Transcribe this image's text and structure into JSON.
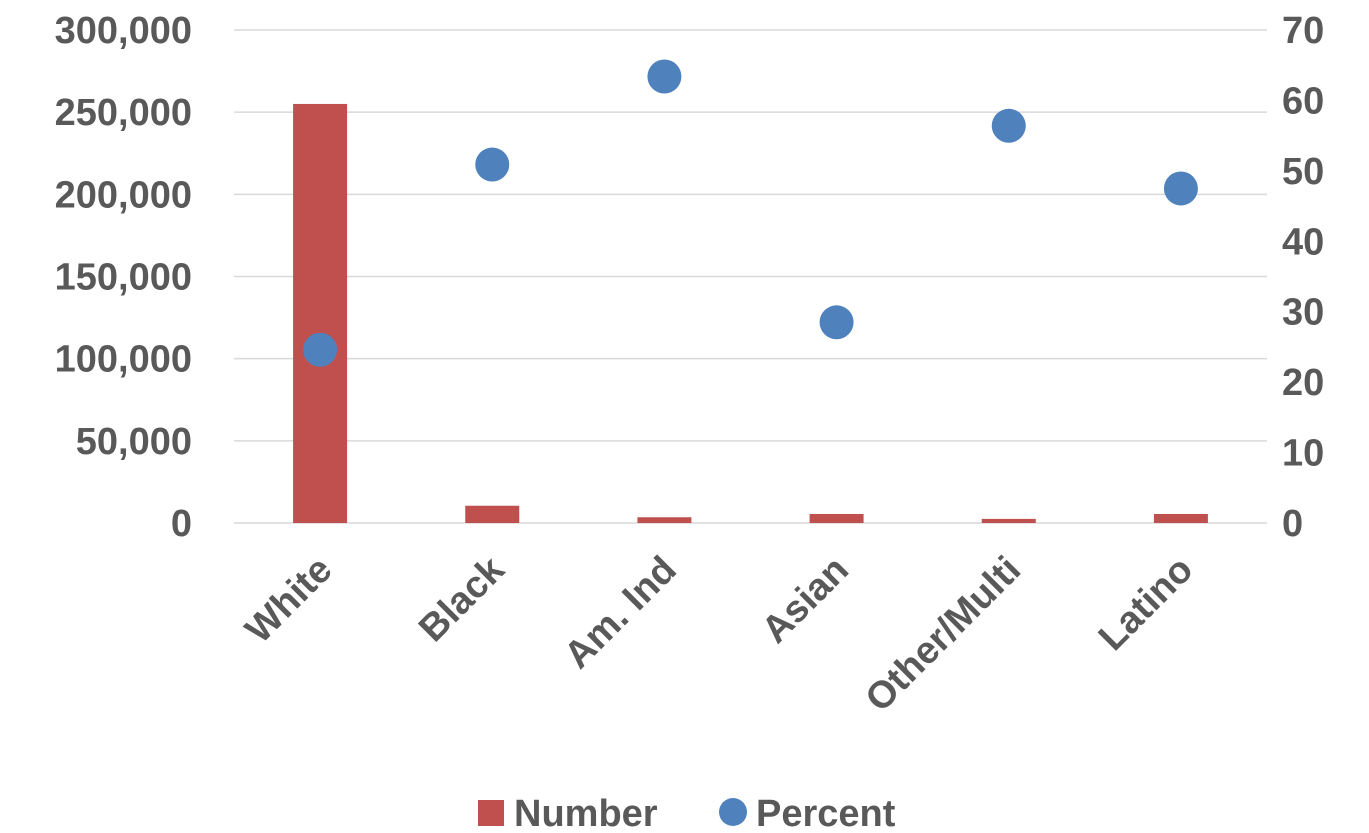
{
  "chart_data": {
    "type": "bar",
    "categories": [
      "White",
      "Black",
      "Am. Ind",
      "Asian",
      "Other/Multi",
      "Latino"
    ],
    "series": [
      {
        "name": "Number",
        "type": "bar",
        "axis": "left",
        "color": "#c0504d",
        "values": [
          255000,
          10500,
          3500,
          5500,
          2500,
          5500
        ]
      },
      {
        "name": "Percent",
        "type": "scatter",
        "axis": "right",
        "color": "#4f81bd",
        "values": [
          24.6,
          50.9,
          63.4,
          28.5,
          56.4,
          47.5
        ]
      }
    ],
    "y_left": {
      "min": 0,
      "max": 300000,
      "ticks": [
        0,
        50000,
        100000,
        150000,
        200000,
        250000,
        300000
      ],
      "tick_labels": [
        "0",
        "50,000",
        "100,000",
        "150,000",
        "200,000",
        "250,000",
        "300,000"
      ]
    },
    "y_right": {
      "min": 0,
      "max": 70,
      "ticks": [
        0,
        10,
        20,
        30,
        40,
        50,
        60,
        70
      ],
      "tick_labels": [
        "0",
        "10",
        "20",
        "30",
        "40",
        "50",
        "60",
        "70"
      ]
    },
    "title": "",
    "xlabel": "",
    "ylabel": "",
    "grid": true,
    "gridline_color": "#d9d9d9",
    "text_color": "#595959",
    "legend": {
      "position": "bottom",
      "entries": [
        "Number",
        "Percent"
      ]
    }
  }
}
